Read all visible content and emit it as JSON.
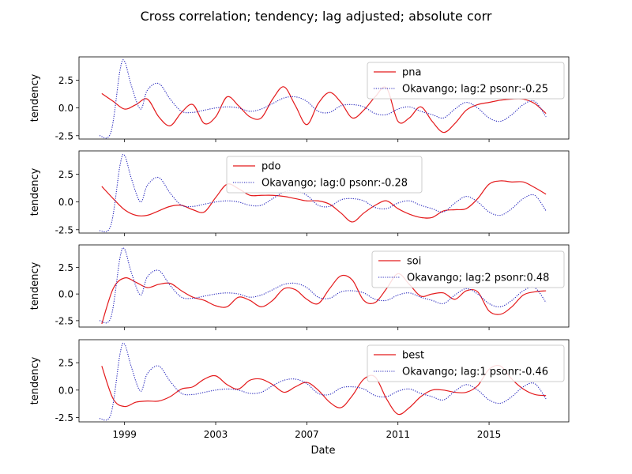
{
  "figure": {
    "title": "Cross correlation; tendency; lag adjusted; absolute corr",
    "xlabel": "Date"
  },
  "colors": {
    "index": "#e41a1c",
    "okavango": "#2222bb"
  },
  "chart_data": [
    {
      "type": "line",
      "ylabel": "tendency",
      "xlim": [
        1997.0,
        2018.5
      ],
      "ylim": [
        -2.8,
        4.6
      ],
      "yticks": [
        "-2.5",
        "0.0",
        "2.5"
      ],
      "ytick_values": [
        -2.5,
        0.0,
        2.5
      ],
      "xticks": [
        "1999",
        "2003",
        "2007",
        "2011",
        "2015"
      ],
      "xtick_values": [
        1999,
        2003,
        2007,
        2011,
        2015
      ],
      "legend_position": "top-right",
      "series": [
        {
          "name": "pna",
          "style": "solid",
          "color": "#e41a1c",
          "x": [
            1998.0,
            1998.5,
            1999.0,
            1999.5,
            2000.0,
            2000.5,
            2001.0,
            2001.5,
            2002.0,
            2002.5,
            2003.0,
            2003.5,
            2004.0,
            2004.5,
            2005.0,
            2005.5,
            2006.0,
            2006.5,
            2007.0,
            2007.5,
            2008.0,
            2008.5,
            2009.0,
            2009.5,
            2010.0,
            2010.5,
            2011.0,
            2011.5,
            2012.0,
            2012.5,
            2013.0,
            2013.5,
            2014.0,
            2014.5,
            2015.0,
            2015.5,
            2016.0,
            2016.5,
            2017.0,
            2017.5
          ],
          "y": [
            1.3,
            0.6,
            -0.1,
            0.3,
            0.8,
            -0.8,
            -1.6,
            -0.4,
            0.3,
            -1.4,
            -0.8,
            1.0,
            0.2,
            -0.8,
            -0.9,
            0.8,
            1.9,
            0.2,
            -1.5,
            0.4,
            1.4,
            0.5,
            -0.9,
            -0.2,
            1.0,
            1.8,
            -1.2,
            -0.9,
            0.1,
            -1.2,
            -2.2,
            -1.4,
            -0.2,
            0.3,
            0.5,
            0.7,
            0.8,
            0.8,
            0.4,
            -0.5
          ]
        },
        {
          "name": "Okavango; lag:2 psonr:-0.25",
          "style": "dotted",
          "color": "#2222bb",
          "x": [
            1997.9,
            1998.4,
            1998.8,
            1999.0,
            1999.3,
            1999.7,
            2000.0,
            2000.5,
            2001.0,
            2001.5,
            2002.0,
            2002.5,
            2003.0,
            2003.5,
            2004.0,
            2004.5,
            2005.0,
            2005.5,
            2006.0,
            2006.5,
            2007.0,
            2007.5,
            2008.0,
            2008.5,
            2009.0,
            2009.5,
            2010.0,
            2010.5,
            2011.0,
            2011.5,
            2012.0,
            2012.5,
            2013.0,
            2013.5,
            2014.0,
            2014.5,
            2015.0,
            2015.5,
            2016.0,
            2016.5,
            2017.0,
            2017.5
          ],
          "y": [
            -2.5,
            -2.2,
            3.4,
            4.2,
            2.0,
            -0.1,
            1.6,
            2.2,
            0.8,
            -0.3,
            -0.4,
            -0.2,
            0.0,
            0.1,
            0.0,
            -0.3,
            -0.1,
            0.4,
            0.9,
            1.0,
            0.6,
            -0.3,
            -0.4,
            0.2,
            0.3,
            0.1,
            -0.5,
            -0.6,
            -0.1,
            0.1,
            -0.3,
            -0.6,
            -0.9,
            -0.1,
            0.5,
            0.0,
            -0.9,
            -1.2,
            -0.6,
            0.3,
            0.6,
            -0.8
          ]
        }
      ]
    },
    {
      "type": "line",
      "ylabel": "tendency",
      "xlim": [
        1997.0,
        2018.5
      ],
      "ylim": [
        -2.8,
        4.6
      ],
      "yticks": [
        "-2.5",
        "0.0",
        "2.5"
      ],
      "ytick_values": [
        -2.5,
        0.0,
        2.5
      ],
      "xticks": [
        "1999",
        "2003",
        "2007",
        "2011",
        "2015"
      ],
      "xtick_values": [
        1999,
        2003,
        2007,
        2011,
        2015
      ],
      "legend_position": "top-center",
      "series": [
        {
          "name": "pdo",
          "style": "solid",
          "color": "#e41a1c",
          "x": [
            1998.0,
            1998.5,
            1999.0,
            1999.5,
            2000.0,
            2000.5,
            2001.0,
            2001.5,
            2002.0,
            2002.5,
            2003.0,
            2003.5,
            2004.0,
            2004.5,
            2005.0,
            2005.5,
            2006.0,
            2006.5,
            2007.0,
            2007.5,
            2008.0,
            2008.5,
            2009.0,
            2009.5,
            2010.0,
            2010.5,
            2011.0,
            2011.5,
            2012.0,
            2012.5,
            2013.0,
            2013.5,
            2014.0,
            2014.5,
            2015.0,
            2015.5,
            2016.0,
            2016.5,
            2017.0,
            2017.5
          ],
          "y": [
            1.4,
            0.3,
            -0.7,
            -1.2,
            -1.2,
            -0.8,
            -0.4,
            -0.3,
            -0.7,
            -0.9,
            0.4,
            1.6,
            1.2,
            0.6,
            0.6,
            0.6,
            0.5,
            0.3,
            0.1,
            0.1,
            -0.2,
            -1.0,
            -1.8,
            -1.0,
            -0.3,
            0.1,
            -0.6,
            -1.1,
            -1.4,
            -1.4,
            -0.8,
            -0.7,
            -0.6,
            0.3,
            1.6,
            1.9,
            1.8,
            1.8,
            1.3,
            0.7
          ]
        },
        {
          "name": "Okavango; lag:0 psonr:-0.28",
          "style": "dotted",
          "color": "#2222bb",
          "x": [
            1997.9,
            1998.4,
            1998.8,
            1999.0,
            1999.3,
            1999.7,
            2000.0,
            2000.5,
            2001.0,
            2001.5,
            2002.0,
            2002.5,
            2003.0,
            2003.5,
            2004.0,
            2004.5,
            2005.0,
            2005.5,
            2006.0,
            2006.5,
            2007.0,
            2007.5,
            2008.0,
            2008.5,
            2009.0,
            2009.5,
            2010.0,
            2010.5,
            2011.0,
            2011.5,
            2012.0,
            2012.5,
            2013.0,
            2013.5,
            2014.0,
            2014.5,
            2015.0,
            2015.5,
            2016.0,
            2016.5,
            2017.0,
            2017.5
          ],
          "y": [
            -2.6,
            -2.1,
            3.3,
            4.2,
            2.1,
            0.0,
            1.5,
            2.2,
            0.8,
            -0.3,
            -0.4,
            -0.2,
            0.0,
            0.1,
            0.0,
            -0.3,
            -0.3,
            0.3,
            0.9,
            1.0,
            0.6,
            -0.3,
            -0.4,
            0.2,
            0.3,
            0.1,
            -0.5,
            -0.6,
            -0.1,
            0.1,
            -0.3,
            -0.6,
            -0.9,
            -0.1,
            0.5,
            0.0,
            -0.9,
            -1.2,
            -0.6,
            0.3,
            0.6,
            -0.8
          ]
        }
      ]
    },
    {
      "type": "line",
      "ylabel": "tendency",
      "xlim": [
        1997.0,
        2018.5
      ],
      "ylim": [
        -3.1,
        4.6
      ],
      "yticks": [
        "-2.5",
        "0.0",
        "2.5"
      ],
      "ytick_values": [
        -2.5,
        0.0,
        2.5
      ],
      "xticks": [
        "1999",
        "2003",
        "2007",
        "2011",
        "2015"
      ],
      "xtick_values": [
        1999,
        2003,
        2007,
        2011,
        2015
      ],
      "legend_position": "top-right",
      "series": [
        {
          "name": "soi",
          "style": "solid",
          "color": "#e41a1c",
          "x": [
            1998.0,
            1998.5,
            1999.0,
            1999.5,
            2000.0,
            2000.5,
            2001.0,
            2001.5,
            2002.0,
            2002.5,
            2003.0,
            2003.5,
            2004.0,
            2004.5,
            2005.0,
            2005.5,
            2006.0,
            2006.5,
            2007.0,
            2007.5,
            2008.0,
            2008.5,
            2009.0,
            2009.5,
            2010.0,
            2010.5,
            2011.0,
            2011.5,
            2012.0,
            2012.5,
            2013.0,
            2013.5,
            2014.0,
            2014.5,
            2015.0,
            2015.5,
            2016.0,
            2016.5,
            2017.0,
            2017.5
          ],
          "y": [
            -2.8,
            0.5,
            1.5,
            1.1,
            0.6,
            0.9,
            1.0,
            0.3,
            -0.3,
            -0.6,
            -1.1,
            -1.2,
            -0.3,
            -0.6,
            -1.2,
            -0.6,
            0.5,
            0.4,
            -0.5,
            -0.9,
            0.5,
            1.7,
            1.3,
            -0.6,
            -0.8,
            0.5,
            1.9,
            0.9,
            -0.2,
            0.0,
            0.1,
            -0.5,
            0.3,
            0.2,
            -1.6,
            -1.9,
            -1.2,
            -0.1,
            0.2,
            0.3
          ]
        },
        {
          "name": "Okavango; lag:2 psonr:0.48",
          "style": "dotted",
          "color": "#2222bb",
          "x": [
            1997.9,
            1998.4,
            1998.8,
            1999.0,
            1999.3,
            1999.7,
            2000.0,
            2000.5,
            2001.0,
            2001.5,
            2002.0,
            2002.5,
            2003.0,
            2003.5,
            2004.0,
            2004.5,
            2005.0,
            2005.5,
            2006.0,
            2006.5,
            2007.0,
            2007.5,
            2008.0,
            2008.5,
            2009.0,
            2009.5,
            2010.0,
            2010.5,
            2011.0,
            2011.5,
            2012.0,
            2012.5,
            2013.0,
            2013.5,
            2014.0,
            2014.5,
            2015.0,
            2015.5,
            2016.0,
            2016.5,
            2017.0,
            2017.5
          ],
          "y": [
            -2.5,
            -2.2,
            3.4,
            4.2,
            2.0,
            -0.1,
            1.6,
            2.2,
            0.8,
            -0.3,
            -0.4,
            -0.2,
            0.0,
            0.1,
            0.0,
            -0.3,
            -0.1,
            0.4,
            0.9,
            1.0,
            0.6,
            -0.3,
            -0.4,
            0.2,
            0.3,
            0.1,
            -0.5,
            -0.6,
            -0.1,
            0.1,
            -0.3,
            -0.6,
            -0.9,
            -0.1,
            0.5,
            0.0,
            -0.9,
            -1.2,
            -0.6,
            0.3,
            0.6,
            -0.8
          ]
        }
      ]
    },
    {
      "type": "line",
      "ylabel": "tendency",
      "xlim": [
        1997.0,
        2018.5
      ],
      "ylim": [
        -2.9,
        4.6
      ],
      "yticks": [
        "-2.5",
        "0.0",
        "2.5"
      ],
      "ytick_values": [
        -2.5,
        0.0,
        2.5
      ],
      "xticks": [
        "1999",
        "2003",
        "2007",
        "2011",
        "2015"
      ],
      "xtick_values": [
        1999,
        2003,
        2007,
        2011,
        2015
      ],
      "legend_position": "top-right",
      "series": [
        {
          "name": "best",
          "style": "solid",
          "color": "#e41a1c",
          "x": [
            1998.0,
            1998.5,
            1999.0,
            1999.5,
            2000.0,
            2000.5,
            2001.0,
            2001.5,
            2002.0,
            2002.5,
            2003.0,
            2003.5,
            2004.0,
            2004.5,
            2005.0,
            2005.5,
            2006.0,
            2006.5,
            2007.0,
            2007.5,
            2008.0,
            2008.5,
            2009.0,
            2009.5,
            2010.0,
            2010.5,
            2011.0,
            2011.5,
            2012.0,
            2012.5,
            2013.0,
            2013.5,
            2014.0,
            2014.5,
            2015.0,
            2015.5,
            2016.0,
            2016.5,
            2017.0,
            2017.5
          ],
          "y": [
            2.2,
            -0.8,
            -1.5,
            -1.1,
            -1.0,
            -1.0,
            -0.6,
            0.1,
            0.3,
            1.0,
            1.3,
            0.5,
            0.1,
            0.9,
            1.0,
            0.5,
            -0.2,
            0.3,
            0.7,
            0.0,
            -1.1,
            -1.6,
            -0.5,
            1.0,
            1.2,
            -0.8,
            -2.2,
            -1.6,
            -0.6,
            0.0,
            0.0,
            -0.2,
            -0.2,
            0.4,
            1.9,
            2.2,
            1.0,
            0.1,
            -0.4,
            -0.5
          ]
        },
        {
          "name": "Okavango; lag:1 psonr:-0.46",
          "style": "dotted",
          "color": "#2222bb",
          "x": [
            1997.9,
            1998.4,
            1998.8,
            1999.0,
            1999.3,
            1999.7,
            2000.0,
            2000.5,
            2001.0,
            2001.5,
            2002.0,
            2002.5,
            2003.0,
            2003.5,
            2004.0,
            2004.5,
            2005.0,
            2005.5,
            2006.0,
            2006.5,
            2007.0,
            2007.5,
            2008.0,
            2008.5,
            2009.0,
            2009.5,
            2010.0,
            2010.5,
            2011.0,
            2011.5,
            2012.0,
            2012.5,
            2013.0,
            2013.5,
            2014.0,
            2014.5,
            2015.0,
            2015.5,
            2016.0,
            2016.5,
            2017.0,
            2017.5
          ],
          "y": [
            -2.6,
            -2.2,
            3.3,
            4.2,
            2.1,
            -0.1,
            1.5,
            2.2,
            0.8,
            -0.3,
            -0.4,
            -0.2,
            0.0,
            0.1,
            0.0,
            -0.3,
            -0.2,
            0.4,
            0.9,
            1.0,
            0.6,
            -0.3,
            -0.4,
            0.2,
            0.3,
            0.1,
            -0.5,
            -0.6,
            -0.1,
            0.1,
            -0.3,
            -0.6,
            -0.9,
            -0.1,
            0.5,
            0.0,
            -0.9,
            -1.2,
            -0.6,
            0.3,
            0.6,
            -0.8
          ]
        }
      ]
    }
  ]
}
